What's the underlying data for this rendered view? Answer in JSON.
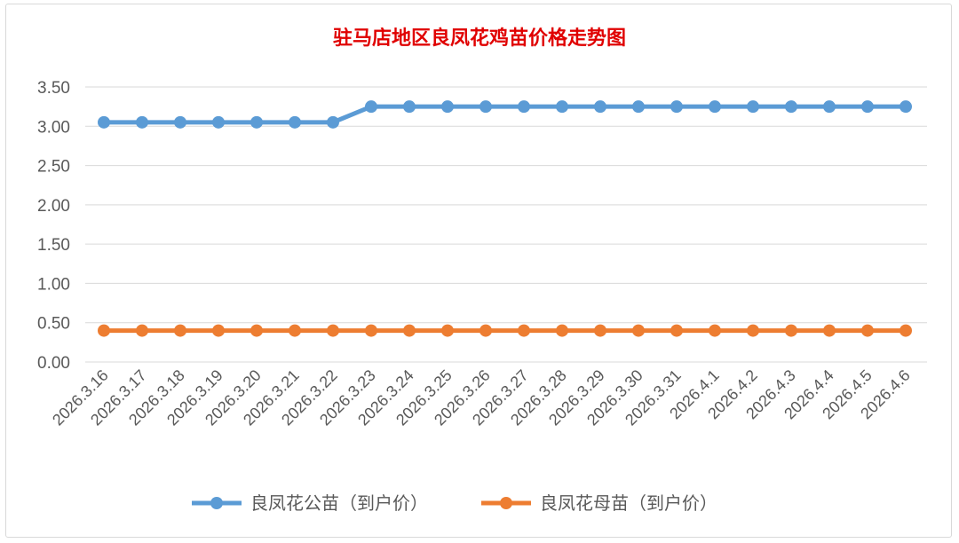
{
  "chart_data": {
    "type": "line",
    "title": "驻马店地区良凤花鸡苗价格走势图",
    "title_color": "#e00000",
    "categories": [
      "2026.3.16",
      "2026.3.17",
      "2026.3.18",
      "2026.3.19",
      "2026.3.20",
      "2026.3.21",
      "2026.3.22",
      "2026.3.23",
      "2026.3.24",
      "2026.3.25",
      "2026.3.26",
      "2026.3.27",
      "2026.3.28",
      "2026.3.29",
      "2026.3.30",
      "2026.3.31",
      "2026.4.1",
      "2026.4.2",
      "2026.4.3",
      "2026.4.4",
      "2026.4.5",
      "2026.4.6"
    ],
    "series": [
      {
        "name": "良凤花公苗（到户价）",
        "color": "#5b9bd5",
        "values": [
          3.05,
          3.05,
          3.05,
          3.05,
          3.05,
          3.05,
          3.05,
          3.25,
          3.25,
          3.25,
          3.25,
          3.25,
          3.25,
          3.25,
          3.25,
          3.25,
          3.25,
          3.25,
          3.25,
          3.25,
          3.25,
          3.25
        ]
      },
      {
        "name": "良凤花母苗（到户价）",
        "color": "#ed7d31",
        "values": [
          0.4,
          0.4,
          0.4,
          0.4,
          0.4,
          0.4,
          0.4,
          0.4,
          0.4,
          0.4,
          0.4,
          0.4,
          0.4,
          0.4,
          0.4,
          0.4,
          0.4,
          0.4,
          0.4,
          0.4,
          0.4,
          0.4
        ]
      }
    ],
    "y_ticks": [
      "0.00",
      "0.50",
      "1.00",
      "1.50",
      "2.00",
      "2.50",
      "3.00",
      "3.50"
    ],
    "ylim": [
      0,
      3.5
    ],
    "grid": true,
    "legend_position": "bottom"
  }
}
